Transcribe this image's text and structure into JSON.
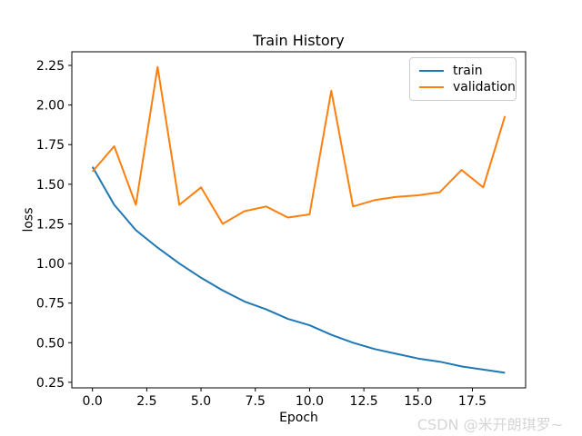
{
  "figure": {
    "title": "Train History",
    "watermark": "CSDN @米开朗琪罗~"
  },
  "chart_data": {
    "type": "line",
    "title": "Train History",
    "xlabel": "Epoch",
    "ylabel": "loss",
    "x": [
      0,
      1,
      2,
      3,
      4,
      5,
      6,
      7,
      8,
      9,
      10,
      11,
      12,
      13,
      14,
      15,
      16,
      17,
      18,
      19
    ],
    "series": [
      {
        "name": "train",
        "color": "#1f77b4",
        "values": [
          1.61,
          1.37,
          1.21,
          1.1,
          1.0,
          0.91,
          0.83,
          0.76,
          0.71,
          0.65,
          0.61,
          0.55,
          0.5,
          0.46,
          0.43,
          0.4,
          0.38,
          0.35,
          0.33,
          0.31
        ]
      },
      {
        "name": "validation",
        "color": "#ff7f0e",
        "values": [
          1.58,
          1.74,
          1.37,
          2.24,
          1.37,
          1.48,
          1.25,
          1.33,
          1.36,
          1.29,
          1.31,
          2.09,
          1.36,
          1.4,
          1.42,
          1.43,
          1.45,
          1.59,
          1.48,
          1.93
        ]
      }
    ],
    "xlim": [
      -0.95,
      19.95
    ],
    "ylim": [
      0.215,
      2.336
    ],
    "xticks": [
      0.0,
      2.5,
      5.0,
      7.5,
      10.0,
      12.5,
      15.0,
      17.5
    ],
    "xtick_labels": [
      "0.0",
      "2.5",
      "5.0",
      "7.5",
      "10.0",
      "12.5",
      "15.0",
      "17.5"
    ],
    "yticks": [
      0.25,
      0.5,
      0.75,
      1.0,
      1.25,
      1.5,
      1.75,
      2.0,
      2.25
    ],
    "ytick_labels": [
      "0.25",
      "0.50",
      "0.75",
      "1.00",
      "1.25",
      "1.50",
      "1.75",
      "2.00",
      "2.25"
    ],
    "legend_position": "upper right",
    "grid": false,
    "spine_color": "#000000",
    "background": "#ffffff"
  }
}
